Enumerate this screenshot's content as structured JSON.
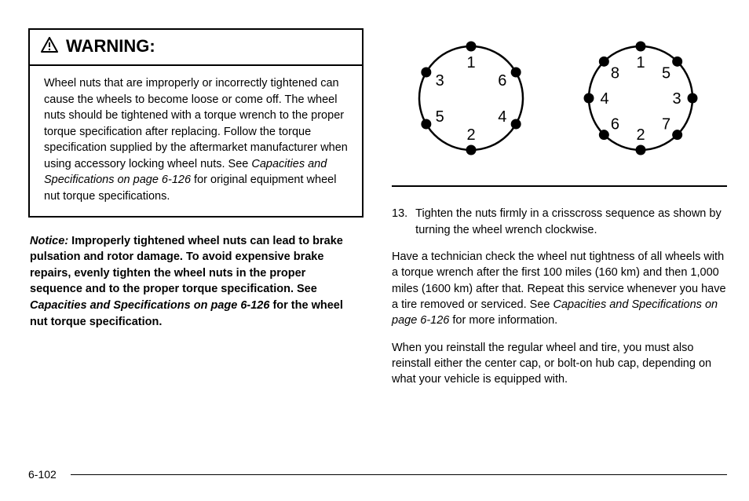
{
  "warning": {
    "heading": "WARNING:",
    "body_pre": "Wheel nuts that are improperly or incorrectly tightened can cause the wheels to become loose or come off. The wheel nuts should be tightened with a torque wrench to the proper torque specification after replacing. Follow the torque specification supplied by the aftermarket manufacturer when using accessory locking wheel nuts. See ",
    "body_ref": "Capacities and Specifications on page 6-126",
    "body_post": " for original equipment wheel nut torque specifications."
  },
  "notice": {
    "label": "Notice:",
    "text_pre": " Improperly tightened wheel nuts can lead to brake pulsation and rotor damage. To avoid expensive brake repairs, evenly tighten the wheel nuts in the proper sequence and to the proper torque specification. See ",
    "ref": "Capacities and Specifications",
    "ref_tail": " on page 6-126",
    "text_post": " for the wheel nut torque specification."
  },
  "diagrams": {
    "stroke": "#000000",
    "circle_r": 66,
    "dot_r": 6.5,
    "label_fontsize": 20,
    "left": {
      "lugs": 6,
      "labels": [
        "1",
        "6",
        "4",
        "2",
        "5",
        "3"
      ]
    },
    "right": {
      "lugs": 8,
      "labels": [
        "1",
        "5",
        "3",
        "7",
        "2",
        "6",
        "4",
        "8"
      ]
    }
  },
  "step": {
    "num": "13.",
    "text": "Tighten the nuts firmly in a crisscross sequence as shown by turning the wheel wrench clockwise."
  },
  "p1_pre": "Have a technician check the wheel nut tightness of all wheels with a torque wrench after the first 100 miles (160 km) and then 1,000 miles (1600 km) after that. Repeat this service whenever you have a tire removed or serviced. See ",
  "p1_ref": "Capacities and Specifications on page 6-126",
  "p1_post": " for more information.",
  "p2": "When you reinstall the regular wheel and tire, you must also reinstall either the center cap, or bolt-on hub cap, depending on what your vehicle is equipped with.",
  "page_number": "6-102"
}
